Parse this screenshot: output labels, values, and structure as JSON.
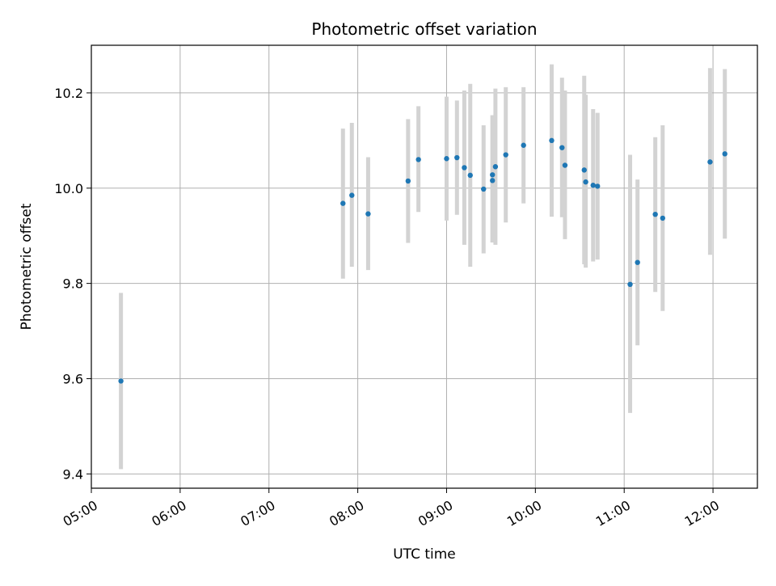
{
  "chart_data": {
    "type": "scatter",
    "title": "Photometric offset variation",
    "xlabel": "UTC time",
    "ylabel": "Photometric offset",
    "xlim": [
      "05:00",
      "12:30"
    ],
    "ylim": [
      9.37,
      10.3
    ],
    "xticks": [
      "05:00",
      "06:00",
      "07:00",
      "08:00",
      "09:00",
      "10:00",
      "11:00",
      "12:00"
    ],
    "yticks": [
      9.4,
      9.6,
      9.8,
      10.0,
      10.2
    ],
    "grid": true,
    "colors": {
      "point": "#1f77b4",
      "errorbar": "#d3d3d3",
      "grid": "#b0b0b0"
    },
    "points": [
      {
        "t": "05:20",
        "y": 9.595,
        "lo": 9.41,
        "hi": 9.78
      },
      {
        "t": "07:50",
        "y": 9.968,
        "lo": 9.81,
        "hi": 10.125
      },
      {
        "t": "07:56",
        "y": 9.985,
        "lo": 9.835,
        "hi": 10.137
      },
      {
        "t": "08:07",
        "y": 9.946,
        "lo": 9.828,
        "hi": 10.065
      },
      {
        "t": "08:34",
        "y": 10.015,
        "lo": 9.885,
        "hi": 10.145
      },
      {
        "t": "08:41",
        "y": 10.06,
        "lo": 9.95,
        "hi": 10.172
      },
      {
        "t": "09:00",
        "y": 10.062,
        "lo": 9.932,
        "hi": 10.192
      },
      {
        "t": "09:07",
        "y": 10.064,
        "lo": 9.944,
        "hi": 10.184
      },
      {
        "t": "09:12",
        "y": 10.043,
        "lo": 9.881,
        "hi": 10.205
      },
      {
        "t": "09:16",
        "y": 10.027,
        "lo": 9.835,
        "hi": 10.219
      },
      {
        "t": "09:25",
        "y": 9.998,
        "lo": 9.863,
        "hi": 10.132
      },
      {
        "t": "09:31",
        "y": 10.016,
        "lo": 9.886,
        "hi": 10.153
      },
      {
        "t": "09:31",
        "y": 10.028,
        "lo": 9.886,
        "hi": 10.153
      },
      {
        "t": "09:33",
        "y": 10.045,
        "lo": 9.881,
        "hi": 10.209
      },
      {
        "t": "09:40",
        "y": 10.07,
        "lo": 9.928,
        "hi": 10.212
      },
      {
        "t": "09:52",
        "y": 10.09,
        "lo": 9.968,
        "hi": 10.212
      },
      {
        "t": "10:11",
        "y": 10.1,
        "lo": 9.94,
        "hi": 10.26
      },
      {
        "t": "10:18",
        "y": 10.085,
        "lo": 9.939,
        "hi": 10.232
      },
      {
        "t": "10:20",
        "y": 10.048,
        "lo": 9.893,
        "hi": 10.205
      },
      {
        "t": "10:33",
        "y": 10.038,
        "lo": 9.84,
        "hi": 10.236
      },
      {
        "t": "10:34",
        "y": 10.013,
        "lo": 9.833,
        "hi": 10.196
      },
      {
        "t": "10:39",
        "y": 10.006,
        "lo": 9.846,
        "hi": 10.166
      },
      {
        "t": "10:42",
        "y": 10.004,
        "lo": 9.85,
        "hi": 10.158
      },
      {
        "t": "11:04",
        "y": 9.798,
        "lo": 9.528,
        "hi": 10.07
      },
      {
        "t": "11:09",
        "y": 9.844,
        "lo": 9.67,
        "hi": 10.018
      },
      {
        "t": "11:21",
        "y": 9.945,
        "lo": 9.782,
        "hi": 10.107
      },
      {
        "t": "11:26",
        "y": 9.937,
        "lo": 9.742,
        "hi": 10.132
      },
      {
        "t": "11:58",
        "y": 10.055,
        "lo": 9.86,
        "hi": 10.252
      },
      {
        "t": "12:08",
        "y": 10.072,
        "lo": 9.894,
        "hi": 10.25
      }
    ]
  }
}
